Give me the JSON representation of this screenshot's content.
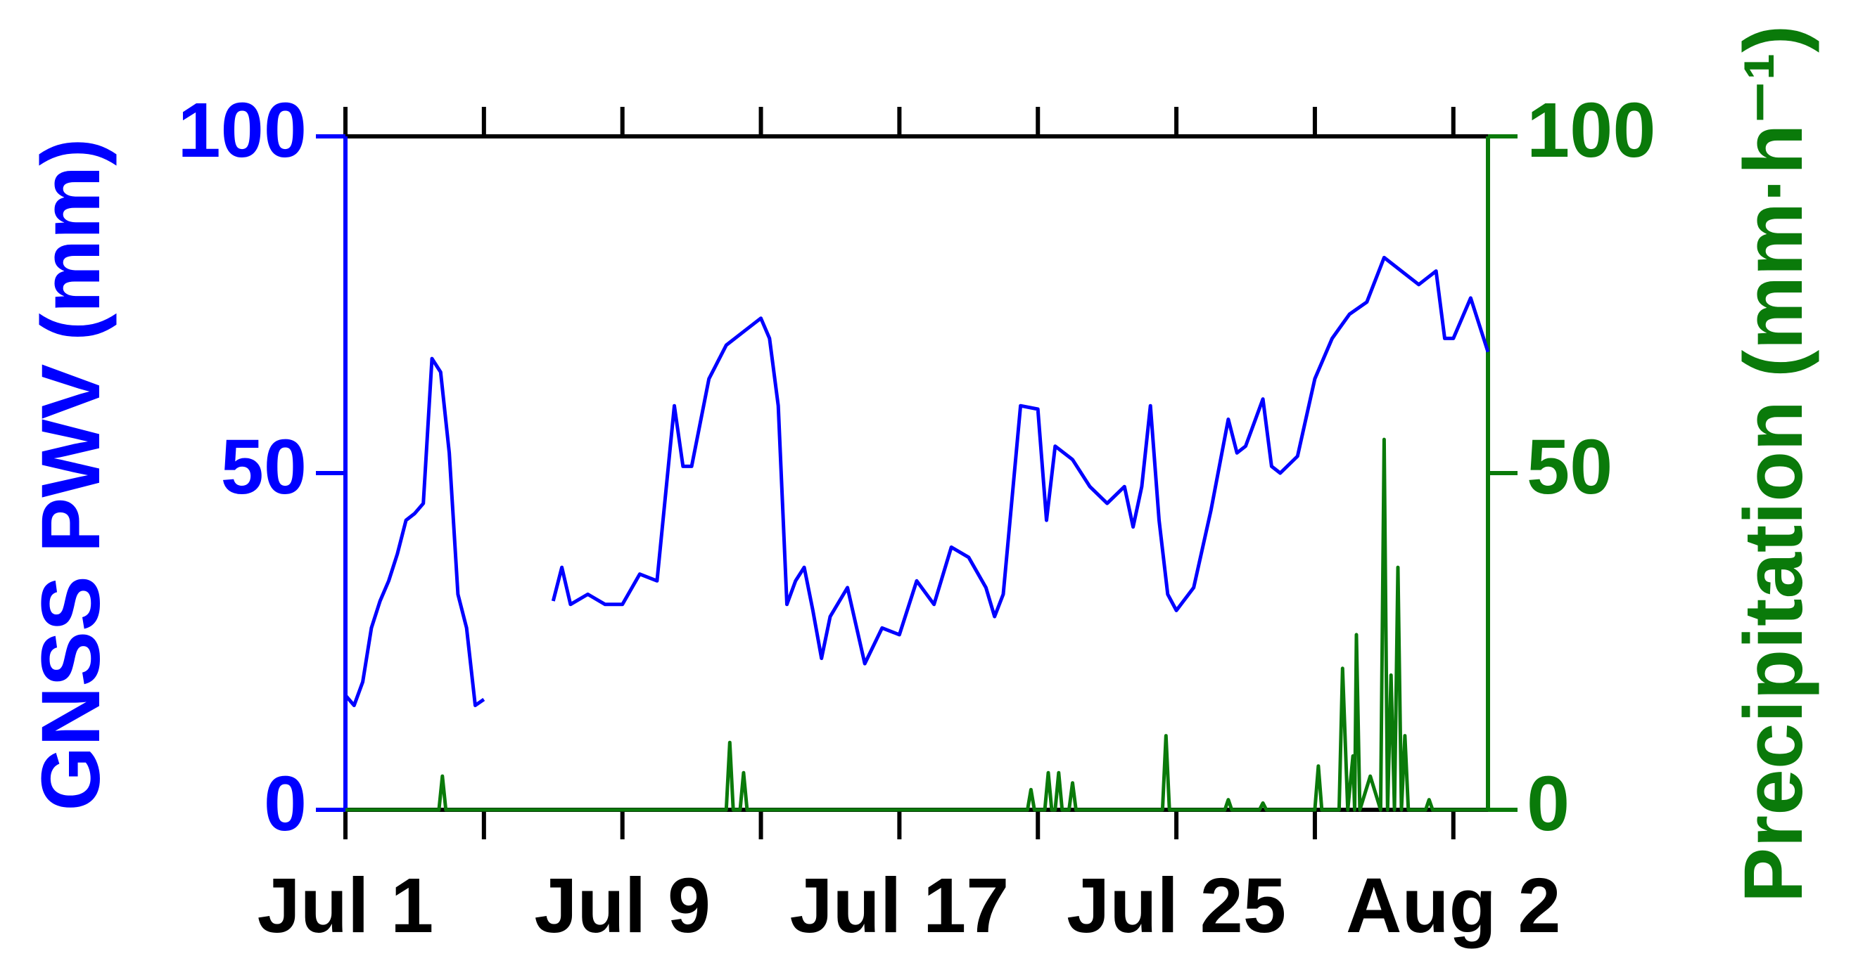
{
  "chart_data": {
    "type": "line",
    "ylabel": "GNSS PWV (mm)",
    "y2label": "Precipitation (mm·h⁻¹)",
    "xlim": [
      0,
      33
    ],
    "xticks": [
      {
        "value": 0,
        "label": "Jul 1"
      },
      {
        "value": 4,
        "label": null
      },
      {
        "value": 8,
        "label": "Jul 9"
      },
      {
        "value": 12,
        "label": null
      },
      {
        "value": 16,
        "label": "Jul 17"
      },
      {
        "value": 20,
        "label": null
      },
      {
        "value": 24,
        "label": "Jul 25"
      },
      {
        "value": 28,
        "label": null
      },
      {
        "value": 32,
        "label": "Aug 2"
      }
    ],
    "ylim": [
      0,
      100
    ],
    "yticks": [
      0,
      50,
      100
    ],
    "y2lim": [
      0,
      100
    ],
    "y2ticks": [
      0,
      50,
      100
    ],
    "ycolor": "#0000ff",
    "y2color": "#0a7a0a",
    "series": [
      {
        "name": "GNSS PWV",
        "color": "#0000ff",
        "x": [
          0,
          0.25,
          0.5,
          0.75,
          1,
          1.25,
          1.5,
          1.75,
          2,
          2.25,
          2.5,
          2.75,
          3,
          3.25,
          3.5,
          3.75,
          4,
          5,
          6,
          6.25,
          6.5,
          7,
          7.5,
          8,
          8.5,
          9,
          9.5,
          9.75,
          10,
          10.5,
          11,
          11.5,
          12,
          12.25,
          12.5,
          12.75,
          13,
          13.25,
          13.5,
          13.75,
          14,
          14.5,
          15,
          15.5,
          16,
          16.5,
          17,
          17.5,
          18,
          18.5,
          18.75,
          19,
          19.5,
          20,
          20.25,
          20.5,
          21,
          21.5,
          22,
          22.5,
          22.75,
          23,
          23.25,
          23.5,
          23.75,
          24,
          24.5,
          25,
          25.5,
          25.75,
          26,
          26.5,
          26.75,
          27,
          27.5,
          28,
          28.5,
          29,
          29.5,
          30,
          30.5,
          31,
          31.5,
          31.75,
          32,
          32.5,
          33
        ],
        "values": [
          17,
          15.5,
          19,
          27,
          31,
          34,
          38,
          43,
          44,
          45.5,
          67,
          65,
          53,
          32,
          27,
          15.5,
          16.4,
          null,
          31,
          36,
          30.5,
          32,
          30.5,
          30.5,
          35,
          34,
          60,
          51,
          51,
          64,
          69,
          71,
          73,
          70,
          60,
          30.5,
          34,
          36,
          29.6,
          22.5,
          28.7,
          33,
          21.7,
          27,
          26,
          34,
          30.5,
          39,
          37.5,
          33,
          28.7,
          32,
          60,
          59.5,
          43,
          54,
          52,
          48,
          45.5,
          48,
          42,
          48,
          60,
          43,
          32,
          29.6,
          33,
          44.5,
          58,
          53,
          54,
          61,
          51,
          50,
          52.5,
          64,
          70,
          73.6,
          75.4,
          82,
          80,
          78,
          80,
          70,
          70,
          76,
          68
        ]
      },
      {
        "name": "Precipitation",
        "color": "#0a7a0a",
        "axis": "y2",
        "x": [
          0,
          2.7,
          2.8,
          2.9,
          11.0,
          11.1,
          11.2,
          11.4,
          11.5,
          11.6,
          19.7,
          19.8,
          19.9,
          20.2,
          20.3,
          20.4,
          20.5,
          20.6,
          20.7,
          20.9,
          21.0,
          21.1,
          23.6,
          23.7,
          23.8,
          25.4,
          25.5,
          25.6,
          26.4,
          26.5,
          26.6,
          28.0,
          28.1,
          28.2,
          28.7,
          28.8,
          28.95,
          29.1,
          29.15,
          29.2,
          29.3,
          29.6,
          29.9,
          30.0,
          30.1,
          30.2,
          30.3,
          30.4,
          30.5,
          30.6,
          30.7,
          31.2,
          31.3,
          31.4,
          33
        ],
        "values": [
          0,
          0,
          5,
          0,
          0,
          10,
          0,
          0,
          5.5,
          0,
          0,
          3,
          0,
          0,
          5.5,
          0,
          0,
          5.5,
          0,
          0,
          4,
          0,
          0,
          11,
          0,
          0,
          1.5,
          0,
          0,
          1,
          0,
          0,
          6.5,
          0,
          0,
          21,
          0,
          8,
          0,
          26,
          0,
          5,
          0,
          55,
          0,
          20,
          0,
          36,
          0,
          11,
          0,
          0,
          1.5,
          0,
          0
        ]
      }
    ]
  }
}
